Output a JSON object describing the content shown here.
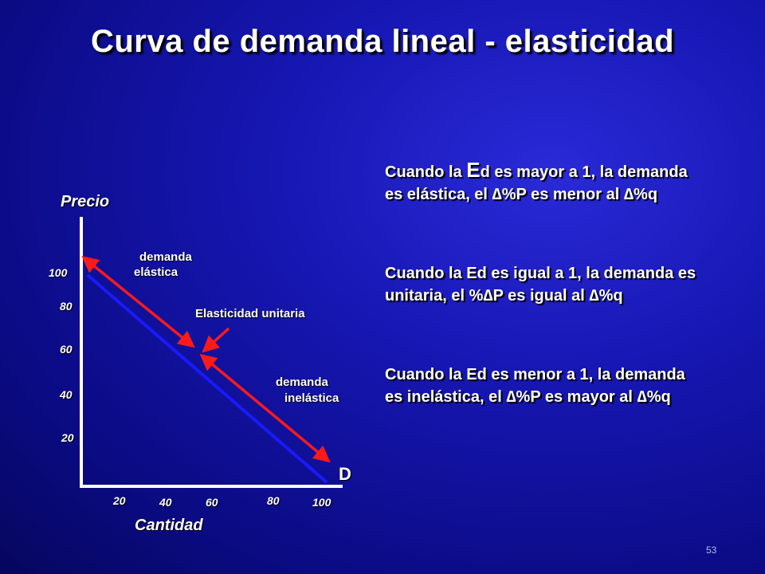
{
  "slide": {
    "title": "Curva de demanda lineal - elasticidad",
    "page_number": "53"
  },
  "graph": {
    "y_axis_label": "Precio",
    "x_axis_label": "Cantidad",
    "y_ticks": [
      "100",
      "80",
      "60",
      "40",
      "20"
    ],
    "x_ticks": [
      "20",
      "40",
      "60",
      "80",
      "100"
    ],
    "curve_label": "D",
    "elastic_label_line1": "demanda",
    "elastic_label_line2": "elástica",
    "unit_label": "Elasticidad unitaria",
    "inelastic_label_line1": "demanda",
    "inelastic_label_line2": "inelástica",
    "colors": {
      "demand_line": "#1a1aff",
      "arrows": "#ff1a1a",
      "axes": "#ffffff"
    }
  },
  "explanations": {
    "elastic": {
      "prefix": "Cuando la ",
      "big": "E",
      "rest": "d es mayor a 1, la demanda es elástica, el ∆%P es menor al ∆%q"
    },
    "unit": "Cuando la Ed es igual a 1, la demanda es unitaria, el %∆P es igual al ∆%q",
    "inelastic": "Cuando la Ed es menor a 1, la demanda es inelástica, el ∆%P es mayor al ∆%q"
  }
}
